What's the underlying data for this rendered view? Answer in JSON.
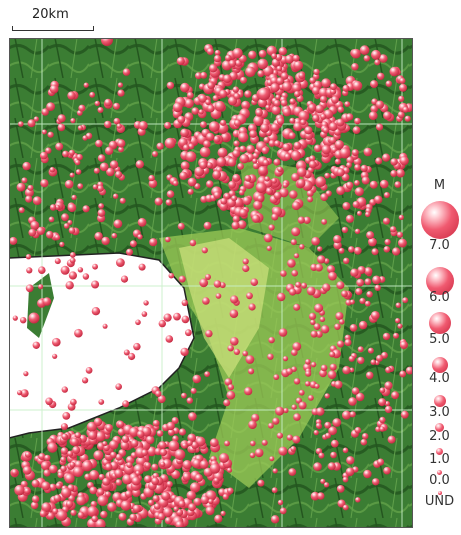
{
  "scale": {
    "label": "20km"
  },
  "legend": {
    "title": "M",
    "items": [
      "7.0",
      "6.0",
      "5.0",
      "4.0",
      "3.0",
      "2.0",
      "1.0",
      "0.0",
      "UND"
    ]
  },
  "colors": {
    "dark_forest": "#2d6a2a",
    "mid_green": "#4c8f3a",
    "light_green": "#a8cf5b",
    "yellow_green": "#d6e88a",
    "water": "#ffffff",
    "quake": "#ee4a62"
  }
}
